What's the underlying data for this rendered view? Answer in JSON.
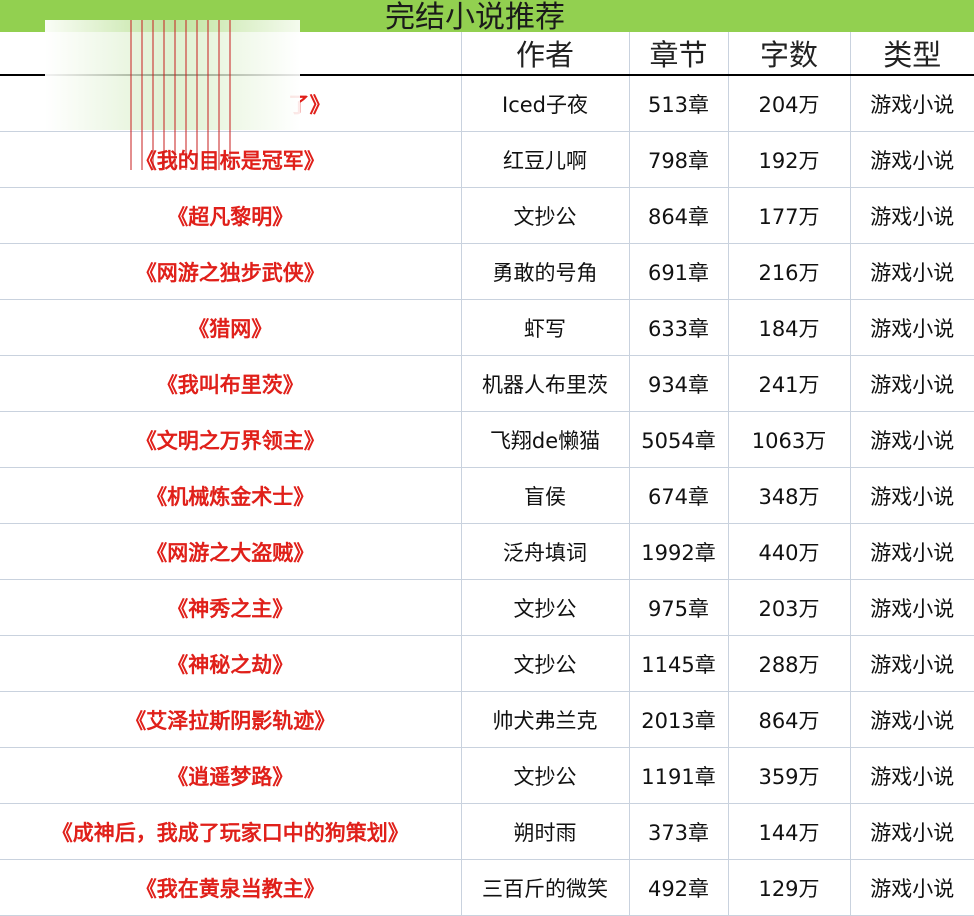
{
  "title": "完结小说推荐",
  "headers": [
    "",
    "作者",
    "章节",
    "字数",
    "类型"
  ],
  "rows": [
    [
      "了》",
      "Iced子夜",
      "513章",
      "204万",
      "游戏小说"
    ],
    [
      "《我的目标是冠军》",
      "红豆儿啊",
      "798章",
      "192万",
      "游戏小说"
    ],
    [
      "《超凡黎明》",
      "文抄公",
      "864章",
      "177万",
      "游戏小说"
    ],
    [
      "《网游之独步武侠》",
      "勇敢的号角",
      "691章",
      "216万",
      "游戏小说"
    ],
    [
      "《猎网》",
      "虾写",
      "633章",
      "184万",
      "游戏小说"
    ],
    [
      "《我叫布里茨》",
      "机器人布里茨",
      "934章",
      "241万",
      "游戏小说"
    ],
    [
      "《文明之万界领主》",
      "飞翔de懒猫",
      "5054章",
      "1063万",
      "游戏小说"
    ],
    [
      "《机械炼金术士》",
      "盲侯",
      "674章",
      "348万",
      "游戏小说"
    ],
    [
      "《网游之大盗贼》",
      "泛舟填词",
      "1992章",
      "440万",
      "游戏小说"
    ],
    [
      "《神秀之主》",
      "文抄公",
      "975章",
      "203万",
      "游戏小说"
    ],
    [
      "《神秘之劫》",
      "文抄公",
      "1145章",
      "288万",
      "游戏小说"
    ],
    [
      "《艾泽拉斯阴影轨迹》",
      "帅犬弗兰克",
      "2013章",
      "864万",
      "游戏小说"
    ],
    [
      "《逍遥梦路》",
      "文抄公",
      "1191章",
      "359万",
      "游戏小说"
    ],
    [
      "《成神后，我成了玩家口中的狗策划》",
      "朔时雨",
      "373章",
      "144万",
      "游戏小说"
    ],
    [
      "《我在黄泉当教主》",
      "三百斤的微笑",
      "492章",
      "129万",
      "游戏小说"
    ]
  ],
  "colors": {
    "title_bg": "#92d050",
    "novel_title": "#e0201a"
  }
}
